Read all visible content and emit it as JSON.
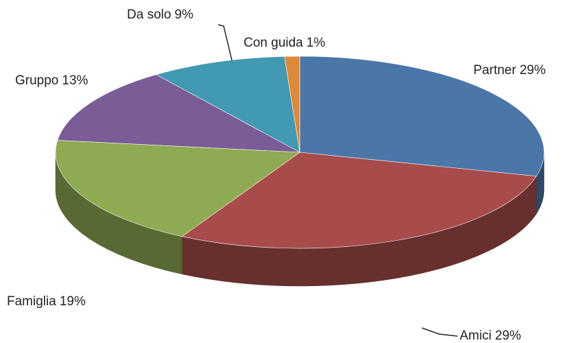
{
  "chart_data": {
    "type": "pie",
    "categories": [
      "Partner",
      "Amici",
      "Famiglia",
      "Gruppo",
      "Da solo",
      "Con guida"
    ],
    "values": [
      29,
      29,
      19,
      13,
      9,
      1
    ],
    "value_labels": [
      "29%",
      "29%",
      "19%",
      "13%",
      "9%",
      "1%"
    ],
    "colors": [
      "#4a76a8",
      "#a84b4b",
      "#8eaa52",
      "#7a5c96",
      "#4199b2",
      "#e0883a"
    ]
  }
}
